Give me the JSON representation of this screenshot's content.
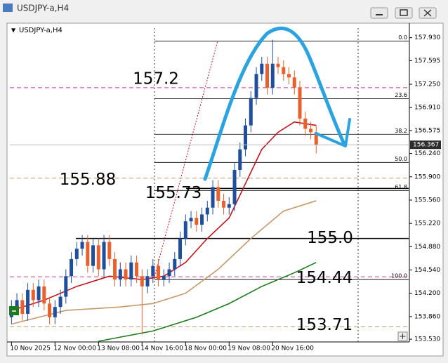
{
  "chart_data": {
    "type": "candlestick",
    "title": "USDJPY-a,H4",
    "open": [
      153.85,
      154.0,
      154.1,
      153.9,
      154.25,
      154.1,
      154.3,
      154.05,
      153.85,
      154.0,
      154.15,
      154.45,
      154.7,
      154.85,
      154.95,
      154.6,
      154.9,
      154.55,
      154.95,
      154.7,
      154.4,
      154.55,
      154.4,
      154.65,
      154.45,
      154.3,
      154.45,
      154.6,
      154.4,
      154.45,
      154.55,
      154.7,
      155.0,
      155.25,
      155.3,
      155.2,
      155.35,
      155.45,
      155.75,
      155.55,
      155.45,
      155.5,
      156.0,
      156.3,
      156.65,
      157.05,
      157.4,
      157.55,
      157.2,
      157.55,
      157.5,
      157.4,
      157.35,
      157.2,
      156.75,
      156.6,
      156.55
    ],
    "high": [
      154.1,
      154.2,
      154.2,
      154.35,
      154.35,
      154.4,
      154.4,
      154.15,
      154.1,
      154.25,
      154.55,
      154.8,
      154.95,
      155.05,
      155.05,
      155.0,
      155.0,
      155.05,
      155.05,
      154.8,
      154.65,
      154.65,
      154.75,
      154.75,
      154.55,
      154.55,
      154.7,
      154.7,
      154.55,
      154.65,
      154.8,
      155.1,
      155.35,
      155.4,
      155.4,
      155.45,
      155.55,
      155.85,
      155.85,
      155.65,
      155.6,
      156.1,
      156.4,
      156.75,
      157.15,
      157.5,
      157.65,
      157.65,
      157.9,
      157.65,
      157.6,
      157.5,
      157.45,
      157.3,
      156.85,
      156.7,
      156.65
    ],
    "low": [
      153.75,
      153.9,
      153.8,
      153.8,
      154.0,
      154.0,
      153.95,
      153.75,
      153.75,
      153.9,
      154.05,
      154.35,
      154.6,
      154.75,
      154.5,
      154.5,
      154.45,
      154.45,
      154.6,
      154.3,
      154.3,
      154.3,
      154.3,
      154.35,
      153.6,
      154.2,
      154.35,
      154.3,
      154.3,
      154.35,
      154.45,
      154.6,
      154.9,
      155.15,
      155.1,
      155.1,
      155.25,
      155.35,
      155.45,
      155.35,
      155.35,
      155.4,
      155.9,
      156.2,
      156.55,
      156.95,
      157.3,
      157.1,
      157.1,
      157.4,
      157.3,
      157.25,
      157.1,
      156.65,
      156.5,
      156.45,
      156.24
    ],
    "close": [
      154.0,
      154.1,
      153.9,
      154.25,
      154.1,
      154.3,
      154.05,
      153.85,
      154.0,
      154.15,
      154.45,
      154.7,
      154.85,
      154.95,
      154.6,
      154.9,
      154.55,
      154.95,
      154.7,
      154.4,
      154.55,
      154.4,
      154.65,
      154.45,
      154.3,
      154.45,
      154.6,
      154.4,
      154.45,
      154.55,
      154.7,
      155.0,
      155.25,
      155.3,
      155.2,
      155.35,
      155.45,
      155.75,
      155.55,
      155.45,
      155.5,
      156.0,
      156.3,
      156.65,
      157.05,
      157.4,
      157.55,
      157.2,
      157.55,
      157.5,
      157.4,
      157.35,
      157.2,
      156.75,
      156.6,
      156.55,
      156.367
    ],
    "up_color": "#1f4e9c",
    "down_color": "#e8612c",
    "xlim": [
      -0.3,
      73
    ],
    "xticks": [
      {
        "value": 0,
        "label": "10 Nov 2025"
      },
      {
        "value": 8,
        "label": "12 Nov 00:00"
      },
      {
        "value": 16,
        "label": "13 Nov 08:00"
      },
      {
        "value": 24,
        "label": "14 Nov 16:00"
      },
      {
        "value": 32,
        "label": "18 Nov 00:00"
      },
      {
        "value": 40,
        "label": "19 Nov 08:00"
      },
      {
        "value": 48,
        "label": "20 Nov 16:00"
      }
    ],
    "ylim": [
      153.49,
      158.07
    ],
    "yticks": [
      {
        "value": 157.93,
        "label": "157.930"
      },
      157.595,
      {
        "value": 157.25,
        "label": "157.250"
      },
      {
        "value": 156.91,
        "label": "156.910"
      },
      156.575,
      {
        "value": 156.24,
        "label": "156.240"
      },
      {
        "value": 155.9,
        "label": "155.900"
      },
      {
        "value": 155.56,
        "label": "155.560"
      },
      {
        "value": 155.22,
        "label": "155.220"
      },
      {
        "value": 154.88,
        "label": "154.880"
      },
      {
        "value": 154.54,
        "label": "154.540"
      },
      {
        "value": 154.2,
        "label": "154.200"
      },
      {
        "value": 153.86,
        "label": "153.860"
      },
      {
        "value": 153.53,
        "label": "153.530"
      }
    ],
    "moving_averages": [
      {
        "color": "#c0141c",
        "x": [
          0,
          6,
          12,
          18,
          24,
          28,
          32,
          36,
          40,
          43,
          46,
          49,
          52,
          56
        ],
        "values": [
          153.95,
          154.1,
          154.3,
          154.45,
          154.4,
          154.45,
          154.65,
          155.0,
          155.3,
          155.8,
          156.3,
          156.55,
          156.7,
          156.65
        ]
      },
      {
        "color": "#c49a6c",
        "x": [
          0,
          10,
          20,
          26,
          32,
          38,
          44,
          50,
          56
        ],
        "values": [
          153.75,
          153.95,
          154.0,
          154.05,
          154.2,
          154.55,
          155.0,
          155.4,
          155.55
        ]
      },
      {
        "color": "#1e7a1e",
        "x": [
          16,
          26,
          34,
          40,
          46,
          52,
          56
        ],
        "values": [
          153.5,
          153.65,
          153.85,
          154.05,
          154.3,
          154.5,
          154.65
        ]
      }
    ],
    "levels": [
      {
        "value": 157.2,
        "color": "#c0399e",
        "dashed": true
      },
      {
        "value": 155.88,
        "color": "#c49a6c",
        "dashed": true
      },
      {
        "value": 155.73,
        "color": "#000000",
        "dashed": false
      },
      {
        "value": 155,
        "label": "155.0",
        "color": "#000000",
        "dashed": false
      },
      {
        "value": 154.44,
        "color": "#c0399e",
        "dashed": true
      },
      {
        "value": 153.71,
        "color": "#c49a6c",
        "dashed": true
      }
    ],
    "fibonacci": [
      {
        "ratio": {
          "value": 0,
          "label": "0.0"
        },
        "price": 157.88
      },
      {
        "ratio": 23.6,
        "price": 157.04
      },
      {
        "ratio": 38.2,
        "price": 156.52
      },
      {
        "ratio": {
          "value": 50,
          "label": "50.0"
        },
        "price": 156.11
      },
      {
        "ratio": 61.8,
        "price": 155.7
      },
      {
        "ratio": {
          "value": 100,
          "label": "100.0"
        },
        "price": 154.4
      }
    ]
  }
}
